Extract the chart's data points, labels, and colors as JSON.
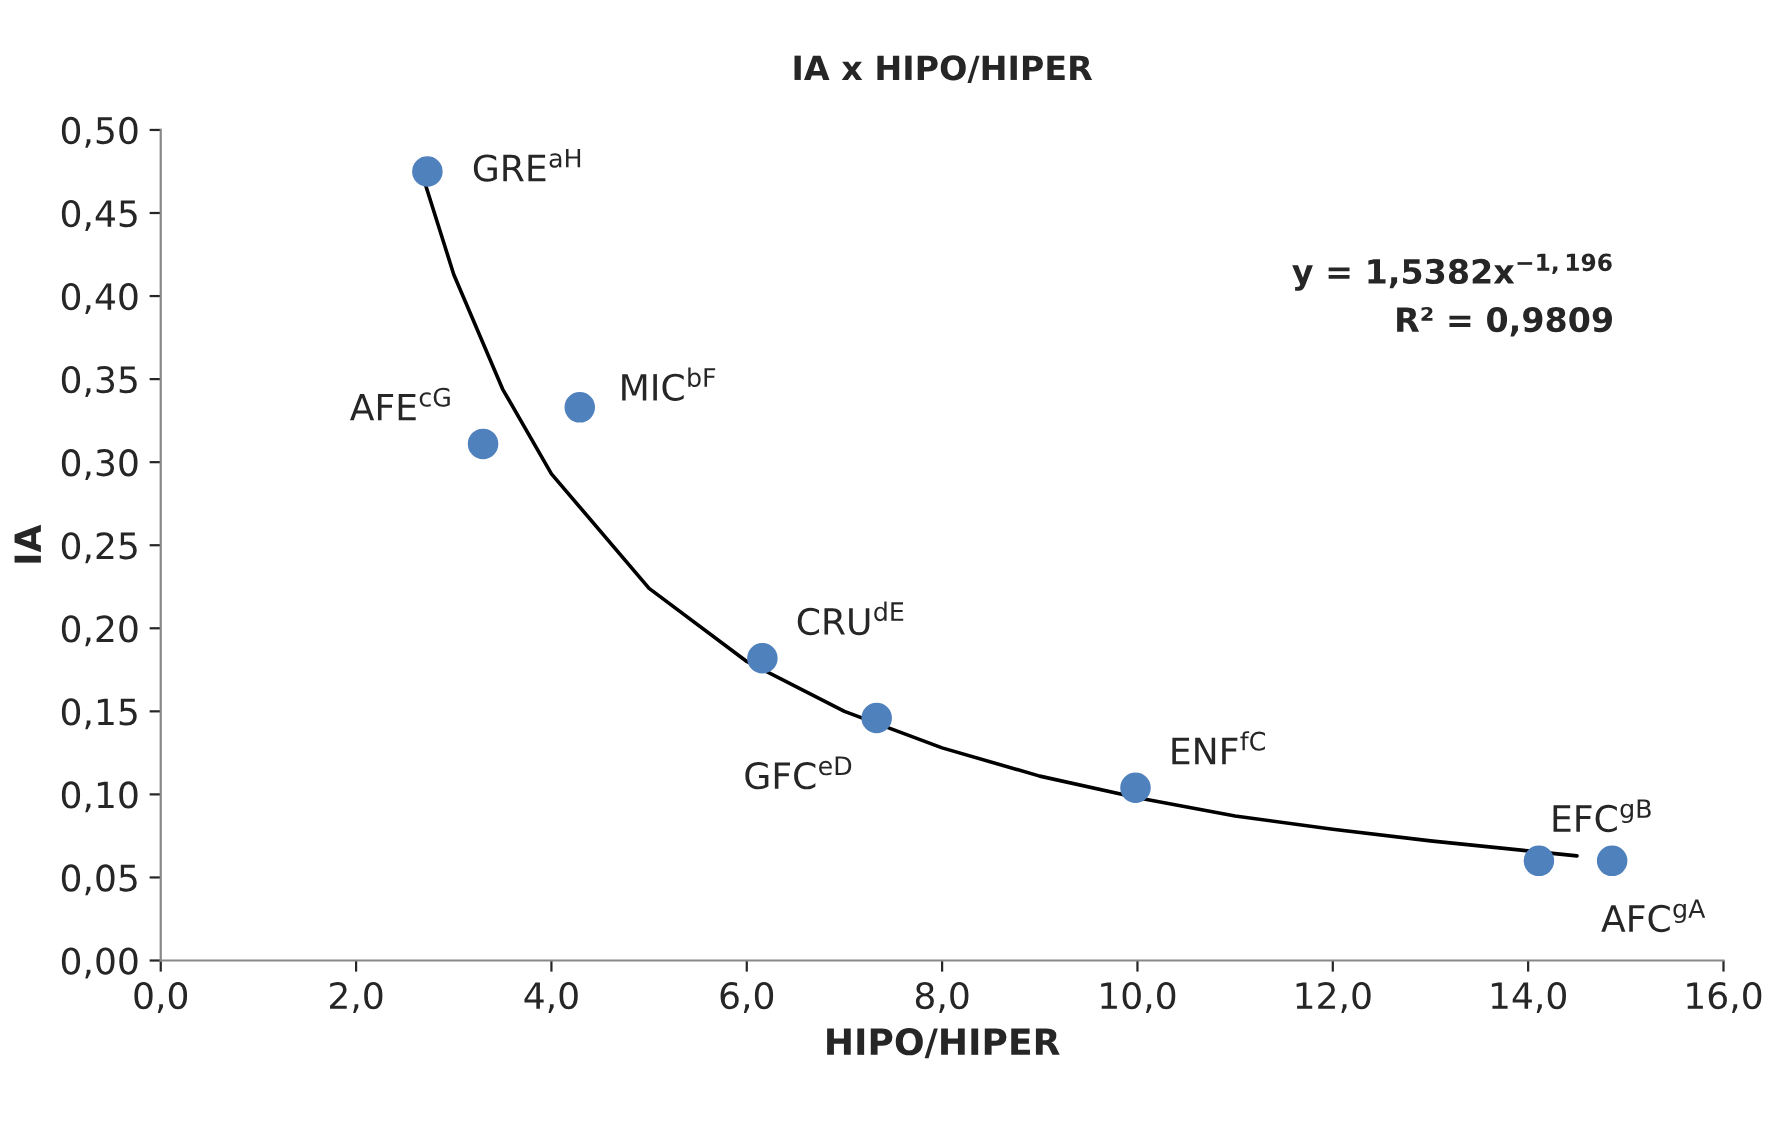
{
  "chart_data": {
    "type": "scatter",
    "title": "IA x HIPO/HIPER",
    "xlabel": "HIPO/HIPER",
    "ylabel": "IA",
    "marker": "circle",
    "grid": false,
    "legend": false,
    "xlim": [
      0,
      16
    ],
    "ylim": [
      0,
      0.5
    ],
    "xticks": [
      {
        "value": 0,
        "label": "0,0"
      },
      {
        "value": 2,
        "label": "2,0"
      },
      {
        "value": 4,
        "label": "4,0"
      },
      {
        "value": 6,
        "label": "6,0"
      },
      {
        "value": 8,
        "label": "8,0"
      },
      {
        "value": 10,
        "label": "10,0"
      },
      {
        "value": 12,
        "label": "12,0"
      },
      {
        "value": 14,
        "label": "14,0"
      },
      {
        "value": 16,
        "label": "16,0"
      }
    ],
    "yticks": [
      {
        "value": 0,
        "label": "0,00"
      },
      {
        "value": 0.05,
        "label": "0,05"
      },
      {
        "value": 0.1,
        "label": "0,10"
      },
      {
        "value": 0.15,
        "label": "0,15"
      },
      {
        "value": 0.2,
        "label": "0,20"
      },
      {
        "value": 0.25,
        "label": "0,25"
      },
      {
        "value": 0.3,
        "label": "0,30"
      },
      {
        "value": 0.35,
        "label": "0,35"
      },
      {
        "value": 0.4,
        "label": "0,40"
      },
      {
        "value": 0.45,
        "label": "0,45"
      },
      {
        "value": 0.5,
        "label": "0,50"
      }
    ],
    "series": [
      {
        "color": "#4f81bd",
        "x": [
          2.73,
          3.3,
          4.29,
          6.16,
          7.33,
          9.98,
          14.11,
          14.86
        ],
        "values": [
          0.475,
          0.311,
          0.333,
          0.182,
          0.146,
          0.104,
          0.06,
          0.06
        ]
      },
      {
        "type": "line",
        "color": "#000000",
        "marker": "none",
        "line_style": "solid",
        "x": [
          2.7,
          3,
          3.5,
          4,
          5,
          6,
          7,
          8,
          9,
          10,
          11,
          12,
          13,
          14,
          14.5
        ],
        "values": [
          0.469,
          0.413,
          0.344,
          0.293,
          0.224,
          0.18,
          0.15,
          0.128,
          0.111,
          0.098,
          0.087,
          0.079,
          0.072,
          0.066,
          0.063
        ]
      }
    ],
    "annotations": [
      {
        "text": "GRE$^{aH}$",
        "x": 2.73,
        "y": 0.475
      },
      {
        "text": "AFE$^{cG}$",
        "x": 3.3,
        "y": 0.311
      },
      {
        "text": "MIC$^{bF}$",
        "x": 4.29,
        "y": 0.333
      },
      {
        "text": "CRU$^{dE}$",
        "x": 6.16,
        "y": 0.182
      },
      {
        "text": "GFC$^{eD}$",
        "x": 7.33,
        "y": 0.146
      },
      {
        "text": "ENF$^{fC}$",
        "x": 9.98,
        "y": 0.104
      },
      {
        "text": "EFC$^{gB}$",
        "x": 14.11,
        "y": 0.06
      },
      {
        "text": "AFC$^{gA}$",
        "x": 14.86,
        "y": 0.06
      },
      "y = 1,5382x$^{−1,196}$\nR² = 0,9809"
    ]
  }
}
